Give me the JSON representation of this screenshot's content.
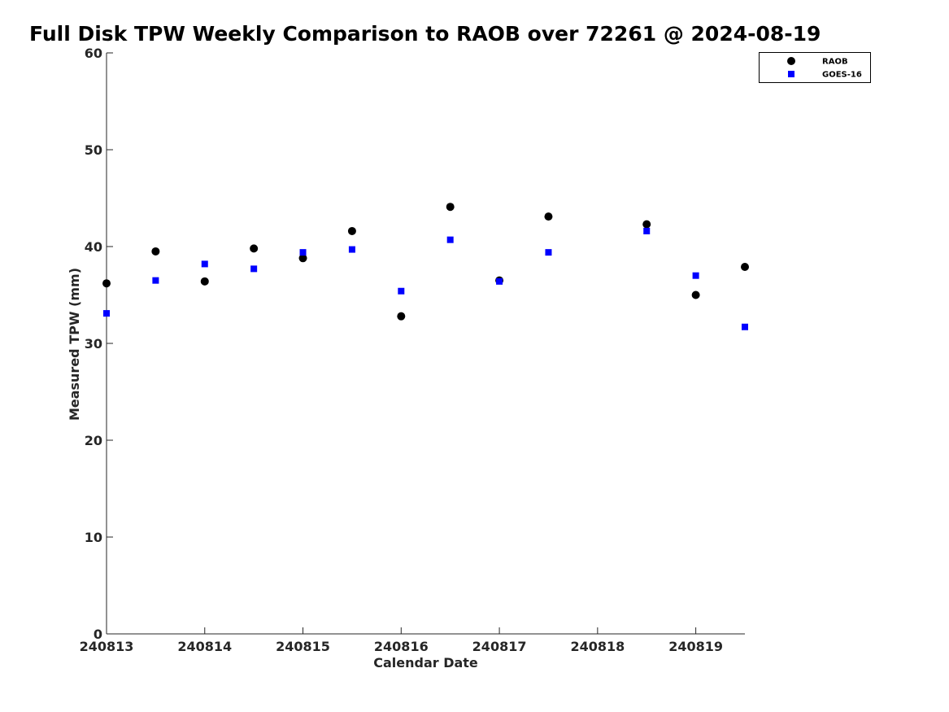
{
  "chart_data": {
    "type": "scatter",
    "title": "Full Disk TPW Weekly Comparison to RAOB over 72261 @ 2024-08-19",
    "xlabel": "Calendar Date",
    "ylabel": "Measured TPW (mm)",
    "x_ticks": [
      "240813",
      "240814",
      "240815",
      "240816",
      "240817",
      "240818",
      "240819"
    ],
    "xlim": [
      "2024-08-13 00:00",
      "2024-08-19 12:00"
    ],
    "ylim": [
      0,
      60
    ],
    "y_ticks": [
      0,
      10,
      20,
      30,
      40,
      50,
      60
    ],
    "grid": false,
    "legend_position": "top-right",
    "series": [
      {
        "name": "RAOB",
        "marker": "circle",
        "color": "#000000",
        "points": [
          {
            "x": "2024-08-13 00:00",
            "y": 36.2
          },
          {
            "x": "2024-08-13 12:00",
            "y": 39.5
          },
          {
            "x": "2024-08-14 00:00",
            "y": 36.4
          },
          {
            "x": "2024-08-14 12:00",
            "y": 39.8
          },
          {
            "x": "2024-08-15 00:00",
            "y": 38.8
          },
          {
            "x": "2024-08-15 12:00",
            "y": 41.6
          },
          {
            "x": "2024-08-16 00:00",
            "y": 32.8
          },
          {
            "x": "2024-08-16 12:00",
            "y": 44.1
          },
          {
            "x": "2024-08-17 00:00",
            "y": 36.5
          },
          {
            "x": "2024-08-17 12:00",
            "y": 43.1
          },
          {
            "x": "2024-08-18 12:00",
            "y": 42.3
          },
          {
            "x": "2024-08-19 00:00",
            "y": 35.0
          },
          {
            "x": "2024-08-19 12:00",
            "y": 37.9
          }
        ]
      },
      {
        "name": "GOES-16",
        "marker": "square",
        "color": "#0000ff",
        "points": [
          {
            "x": "2024-08-13 00:00",
            "y": 33.1
          },
          {
            "x": "2024-08-13 12:00",
            "y": 36.5
          },
          {
            "x": "2024-08-14 00:00",
            "y": 38.2
          },
          {
            "x": "2024-08-14 12:00",
            "y": 37.7
          },
          {
            "x": "2024-08-15 00:00",
            "y": 39.4
          },
          {
            "x": "2024-08-15 12:00",
            "y": 39.7
          },
          {
            "x": "2024-08-16 00:00",
            "y": 35.4
          },
          {
            "x": "2024-08-16 12:00",
            "y": 40.7
          },
          {
            "x": "2024-08-17 00:00",
            "y": 36.4
          },
          {
            "x": "2024-08-17 12:00",
            "y": 39.4
          },
          {
            "x": "2024-08-18 12:00",
            "y": 41.6
          },
          {
            "x": "2024-08-19 00:00",
            "y": 37.0
          },
          {
            "x": "2024-08-19 12:00",
            "y": 31.7
          }
        ]
      }
    ]
  }
}
